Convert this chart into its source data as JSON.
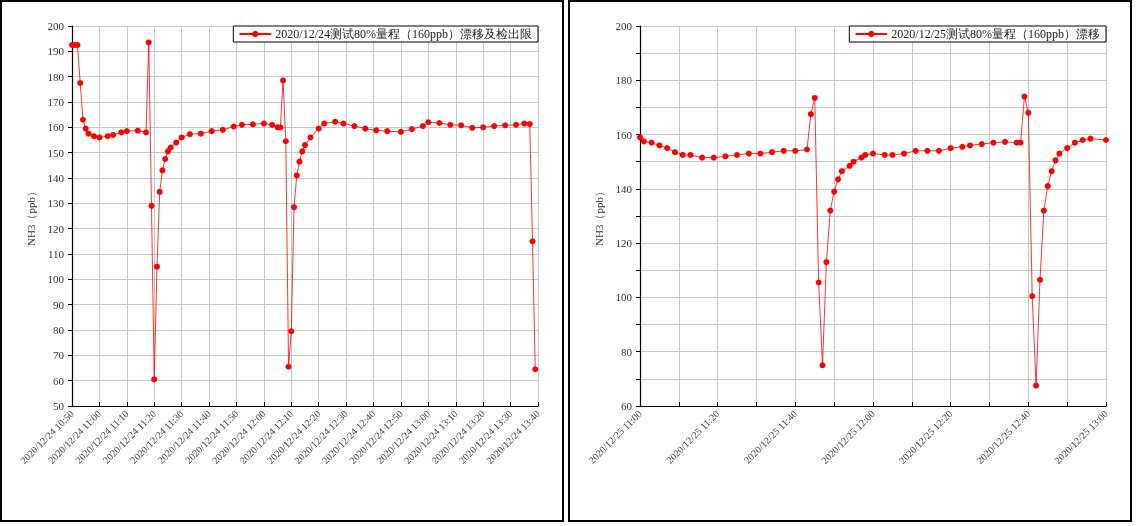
{
  "chart_data": [
    {
      "type": "line",
      "ylabel": "NH3（ppb）",
      "legend": "top right",
      "grid": true,
      "marker": "circle",
      "line_style": "solid",
      "ylim": [
        50,
        200
      ],
      "yticks": [
        50,
        60,
        70,
        80,
        90,
        100,
        110,
        120,
        130,
        140,
        150,
        160,
        170,
        180,
        190,
        200
      ],
      "xlim": [
        "2020-12-24T10:50",
        "2020-12-24T13:40"
      ],
      "xticks": [
        {
          "value": "2020-12-24T10:50",
          "label": "2020/12/24 10:50"
        },
        {
          "value": "2020-12-24T11:00",
          "label": "2020/12/24 11:00"
        },
        {
          "value": "2020-12-24T11:10",
          "label": "2020/12/24 11:10"
        },
        {
          "value": "2020-12-24T11:20",
          "label": "2020/12/24 11:20"
        },
        {
          "value": "2020-12-24T11:30",
          "label": "2020/12/24 11:30"
        },
        {
          "value": "2020-12-24T11:40",
          "label": "2020/12/24 11:40"
        },
        {
          "value": "2020-12-24T11:50",
          "label": "2020/12/24 11:50"
        },
        {
          "value": "2020-12-24T12:00",
          "label": "2020/12/24 12:00"
        },
        {
          "value": "2020-12-24T12:10",
          "label": "2020/12/24 12:10"
        },
        {
          "value": "2020-12-24T12:20",
          "label": "2020/12/24 12:20"
        },
        {
          "value": "2020-12-24T12:30",
          "label": "2020/12/24 12:30"
        },
        {
          "value": "2020-12-24T12:40",
          "label": "2020/12/24 12:40"
        },
        {
          "value": "2020-12-24T12:50",
          "label": "2020/12/24 12:50"
        },
        {
          "value": "2020-12-24T13:00",
          "label": "2020/12/24 13:00"
        },
        {
          "value": "2020-12-24T13:10",
          "label": "2020/12/24 13:10"
        },
        {
          "value": "2020-12-24T13:20",
          "label": "2020/12/24 13:20"
        },
        {
          "value": "2020-12-24T13:30",
          "label": "2020/12/24 13:30"
        },
        {
          "value": "2020-12-24T13:40",
          "label": "2020/12/24 13:40"
        }
      ],
      "series": [
        {
          "name": "2020/12/24测试80%量程（160ppb）漂移及检出限",
          "color": "#ff0000",
          "x": [
            "2020-12-24T10:50",
            "2020-12-24T10:51",
            "2020-12-24T10:52",
            "2020-12-24T10:53",
            "2020-12-24T10:54",
            "2020-12-24T10:55",
            "2020-12-24T10:56",
            "2020-12-24T10:58",
            "2020-12-24T11:00",
            "2020-12-24T11:03",
            "2020-12-24T11:05",
            "2020-12-24T11:08",
            "2020-12-24T11:10",
            "2020-12-24T11:14",
            "2020-12-24T11:17",
            "2020-12-24T11:18",
            "2020-12-24T11:19",
            "2020-12-24T11:20",
            "2020-12-24T11:21",
            "2020-12-24T11:22",
            "2020-12-24T11:23",
            "2020-12-24T11:24",
            "2020-12-24T11:25",
            "2020-12-24T11:26",
            "2020-12-24T11:28",
            "2020-12-24T11:30",
            "2020-12-24T11:33",
            "2020-12-24T11:37",
            "2020-12-24T11:41",
            "2020-12-24T11:45",
            "2020-12-24T11:49",
            "2020-12-24T11:52",
            "2020-12-24T11:56",
            "2020-12-24T12:00",
            "2020-12-24T12:03",
            "2020-12-24T12:05",
            "2020-12-24T12:06",
            "2020-12-24T12:07",
            "2020-12-24T12:08",
            "2020-12-24T12:09",
            "2020-12-24T12:10",
            "2020-12-24T12:11",
            "2020-12-24T12:12",
            "2020-12-24T12:13",
            "2020-12-24T12:14",
            "2020-12-24T12:15",
            "2020-12-24T12:17",
            "2020-12-24T12:20",
            "2020-12-24T12:22",
            "2020-12-24T12:26",
            "2020-12-24T12:29",
            "2020-12-24T12:33",
            "2020-12-24T12:37",
            "2020-12-24T12:41",
            "2020-12-24T12:45",
            "2020-12-24T12:50",
            "2020-12-24T12:54",
            "2020-12-24T12:58",
            "2020-12-24T13:00",
            "2020-12-24T13:04",
            "2020-12-24T13:08",
            "2020-12-24T13:12",
            "2020-12-24T13:16",
            "2020-12-24T13:20",
            "2020-12-24T13:24",
            "2020-12-24T13:28",
            "2020-12-24T13:32",
            "2020-12-24T13:35",
            "2020-12-24T13:37",
            "2020-12-24T13:38",
            "2020-12-24T13:39"
          ],
          "values": [
            192.5,
            192.5,
            192.5,
            177.5,
            163,
            159.5,
            157.5,
            156.5,
            156,
            156.5,
            157,
            158,
            158.5,
            158.7,
            158,
            193.5,
            129,
            60.5,
            105,
            134.5,
            143,
            147.5,
            150.5,
            152,
            154,
            156,
            157.3,
            157.5,
            158.5,
            159,
            160.3,
            161,
            161.2,
            161.5,
            161,
            160,
            160,
            178.5,
            154.5,
            65.5,
            79.5,
            128.5,
            141,
            146.5,
            150.5,
            153,
            156,
            159.5,
            161.5,
            162.2,
            161.5,
            160.5,
            159.5,
            158.8,
            158.5,
            158.2,
            159.3,
            160.5,
            162,
            161.7,
            161,
            160.8,
            159.8,
            160,
            160.5,
            160.8,
            161,
            161.5,
            161.3,
            115,
            64.5
          ]
        }
      ]
    },
    {
      "type": "line",
      "ylabel": "NH3（ppb）",
      "legend": "top right",
      "grid": true,
      "marker": "circle",
      "line_style": "solid",
      "ylim": [
        60,
        200
      ],
      "yticks": [
        60,
        {
          "value": 70,
          "label": null
        },
        80,
        {
          "value": 90,
          "label": null
        },
        100,
        {
          "value": 110,
          "label": null
        },
        120,
        {
          "value": 130,
          "label": null
        },
        140,
        {
          "value": 150,
          "label": null
        },
        160,
        {
          "value": 170,
          "label": null
        },
        180,
        {
          "value": 190,
          "label": null
        },
        200
      ],
      "xlim": [
        "2020-12-25T11:00",
        "2020-12-25T13:00"
      ],
      "xticks": [
        {
          "value": "2020-12-25T11:00",
          "label": "2020/12/25 11:00"
        },
        {
          "value": "2020-12-25T11:10",
          "label": null
        },
        {
          "value": "2020-12-25T11:20",
          "label": "2020/12/25 11:20"
        },
        {
          "value": "2020-12-25T11:30",
          "label": null
        },
        {
          "value": "2020-12-25T11:40",
          "label": "2020/12/25 11:40"
        },
        {
          "value": "2020-12-25T11:50",
          "label": null
        },
        {
          "value": "2020-12-25T12:00",
          "label": "2020/12/25 12:00"
        },
        {
          "value": "2020-12-25T12:10",
          "label": null
        },
        {
          "value": "2020-12-25T12:20",
          "label": "2020/12/25 12:20"
        },
        {
          "value": "2020-12-25T12:30",
          "label": null
        },
        {
          "value": "2020-12-25T12:40",
          "label": "2020/12/25 12:40"
        },
        {
          "value": "2020-12-25T12:50",
          "label": null
        },
        {
          "value": "2020-12-25T13:00",
          "label": "2020/12/25 13:00"
        }
      ],
      "series": [
        {
          "name": "2020/12/25测试80%量程（160ppb）漂移",
          "color": "#ff0000",
          "x": [
            "2020-12-25T11:00",
            "2020-12-25T11:01",
            "2020-12-25T11:03",
            "2020-12-25T11:05",
            "2020-12-25T11:07",
            "2020-12-25T11:09",
            "2020-12-25T11:11",
            "2020-12-25T11:13",
            "2020-12-25T11:16",
            "2020-12-25T11:19",
            "2020-12-25T11:22",
            "2020-12-25T11:25",
            "2020-12-25T11:28",
            "2020-12-25T11:31",
            "2020-12-25T11:34",
            "2020-12-25T11:37",
            "2020-12-25T11:40",
            "2020-12-25T11:43",
            "2020-12-25T11:44",
            "2020-12-25T11:45",
            "2020-12-25T11:46",
            "2020-12-25T11:47",
            "2020-12-25T11:48",
            "2020-12-25T11:49",
            "2020-12-25T11:50",
            "2020-12-25T11:51",
            "2020-12-25T11:52",
            "2020-12-25T11:54",
            "2020-12-25T11:55",
            "2020-12-25T11:57",
            "2020-12-25T11:58",
            "2020-12-25T12:00",
            "2020-12-25T12:03",
            "2020-12-25T12:05",
            "2020-12-25T12:08",
            "2020-12-25T12:11",
            "2020-12-25T12:14",
            "2020-12-25T12:17",
            "2020-12-25T12:20",
            "2020-12-25T12:23",
            "2020-12-25T12:25",
            "2020-12-25T12:28",
            "2020-12-25T12:31",
            "2020-12-25T12:34",
            "2020-12-25T12:37",
            "2020-12-25T12:38",
            "2020-12-25T12:39",
            "2020-12-25T12:40",
            "2020-12-25T12:41",
            "2020-12-25T12:42",
            "2020-12-25T12:43",
            "2020-12-25T12:44",
            "2020-12-25T12:45",
            "2020-12-25T12:46",
            "2020-12-25T12:47",
            "2020-12-25T12:48",
            "2020-12-25T12:50",
            "2020-12-25T12:52",
            "2020-12-25T12:54",
            "2020-12-25T12:56",
            "2020-12-25T13:00"
          ],
          "values": [
            159,
            157.5,
            157,
            156,
            155,
            153.5,
            152.5,
            152.5,
            151.5,
            151.5,
            152,
            152.5,
            153,
            153,
            153.5,
            154,
            154,
            154.5,
            167.5,
            173.5,
            105.5,
            75,
            113,
            132,
            139,
            143.5,
            146.5,
            148.5,
            150,
            151.5,
            152.5,
            153,
            152.5,
            152.5,
            153,
            154,
            154,
            154,
            155,
            155.5,
            156,
            156.5,
            157,
            157.3,
            157,
            157,
            174,
            168,
            100.5,
            67.5,
            106.5,
            132,
            141,
            146.5,
            150.5,
            153,
            155,
            157,
            158,
            158.5,
            158
          ]
        }
      ]
    }
  ]
}
